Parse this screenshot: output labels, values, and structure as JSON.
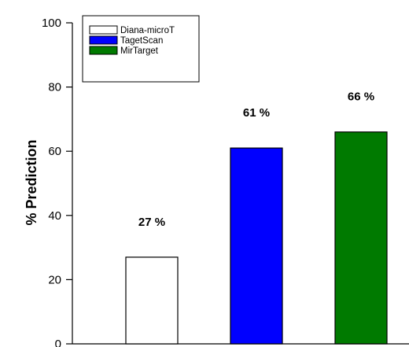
{
  "chart_data": {
    "type": "bar",
    "categories": [
      "Diana-microT",
      "TagetScan",
      "MirTarget"
    ],
    "values": [
      27,
      61,
      66
    ],
    "data_labels": [
      "27 %",
      "61 %",
      "66 %"
    ],
    "colors": [
      "#ffffff",
      "#0000ff",
      "#007a00"
    ],
    "ylabel": "% Prediction",
    "ylim": [
      0,
      100
    ],
    "yticks": [
      0,
      20,
      40,
      60,
      80,
      100
    ],
    "legend": {
      "placement": "top-left",
      "entries": [
        "Diana-microT",
        "TagetScan",
        "MirTarget"
      ]
    },
    "grid": false
  }
}
